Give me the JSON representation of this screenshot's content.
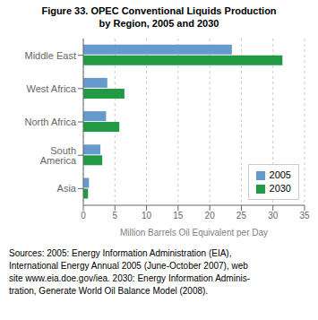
{
  "chart_data": {
    "type": "bar",
    "orientation": "horizontal",
    "title": "Figure 33.  OPEC Conventional Liquids Production",
    "subtitle": "by Region, 2005 and 2030",
    "categories": [
      "Middle East",
      "West Africa",
      "North Africa",
      "South America",
      "Asia"
    ],
    "series": [
      {
        "name": "2005",
        "color": "#6699cc",
        "values": [
          23.5,
          3.8,
          3.6,
          2.7,
          0.9
        ]
      },
      {
        "name": "2030",
        "color": "#229944",
        "values": [
          31.5,
          6.5,
          5.7,
          3.0,
          0.75
        ]
      }
    ],
    "xlabel": "Million Barrels Oil Equivalent per Day",
    "xlim": [
      0,
      35
    ],
    "xticks": [
      0,
      5,
      10,
      15,
      20,
      25,
      30,
      35
    ],
    "grid": true,
    "legend": "lower right",
    "annotations": [
      "Sources: 2005: Energy Information Administration (EIA),",
      "International Energy Annual 2005 (June-October 2007), web",
      "site www.eia.doe.gov/iea. 2030: Energy Information Adminis-",
      "tration, Generate World Oil Balance Model (2008)."
    ]
  }
}
